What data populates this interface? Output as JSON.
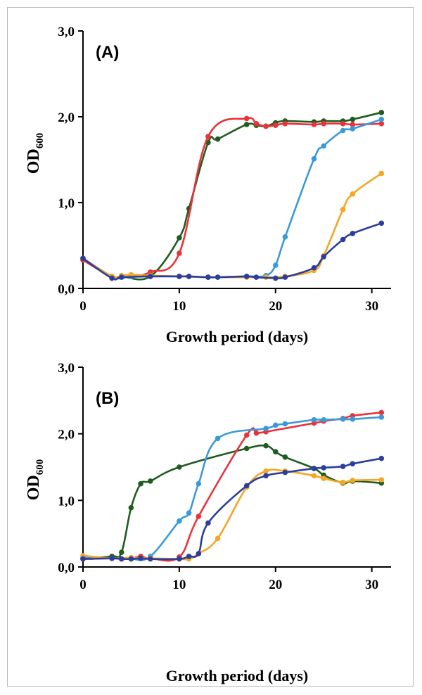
{
  "chart_data": [
    {
      "type": "line",
      "panel_label": "(A)",
      "xlabel": "Growth period (days)",
      "ylabel_main": "OD",
      "ylabel_sub": "600",
      "xlim": [
        0,
        32
      ],
      "ylim": [
        0,
        3
      ],
      "x_ticks": [
        "0",
        "10",
        "20",
        "30"
      ],
      "y_ticks": [
        "0,0",
        "1,0",
        "2,0",
        "3,0"
      ],
      "grid": false,
      "legend": "none",
      "series": [
        {
          "color": "#1f5c1f",
          "points": [
            [
              0,
              0.35
            ],
            [
              3,
              0.14
            ],
            [
              4,
              0.14
            ],
            [
              7,
              0.14
            ],
            [
              10,
              0.59
            ],
            [
              11,
              0.93
            ],
            [
              13,
              1.7
            ],
            [
              14,
              1.74
            ],
            [
              17,
              1.91
            ],
            [
              18,
              1.9
            ],
            [
              19,
              1.89
            ],
            [
              20,
              1.93
            ],
            [
              21,
              1.95
            ],
            [
              24,
              1.94
            ],
            [
              25,
              1.95
            ],
            [
              27,
              1.95
            ],
            [
              28,
              1.97
            ],
            [
              31,
              2.05
            ]
          ]
        },
        {
          "color": "#e8333a",
          "points": [
            [
              0,
              0.33
            ],
            [
              3,
              0.14
            ],
            [
              5,
              0.14
            ],
            [
              7,
              0.19
            ],
            [
              10,
              0.41
            ],
            [
              13,
              1.77
            ],
            [
              17,
              1.98
            ],
            [
              18,
              1.92
            ],
            [
              19,
              1.89
            ],
            [
              20,
              1.9
            ],
            [
              21,
              1.92
            ],
            [
              24,
              1.91
            ],
            [
              25,
              1.92
            ],
            [
              27,
              1.92
            ],
            [
              28,
              1.91
            ],
            [
              31,
              1.92
            ]
          ]
        },
        {
          "color": "#3a9ad9",
          "points": [
            [
              0,
              0.35
            ],
            [
              3,
              0.13
            ],
            [
              5,
              0.14
            ],
            [
              7,
              0.14
            ],
            [
              10,
              0.14
            ],
            [
              11,
              0.14
            ],
            [
              13,
              0.13
            ],
            [
              17,
              0.14
            ],
            [
              19,
              0.15
            ],
            [
              20,
              0.27
            ],
            [
              21,
              0.6
            ],
            [
              24,
              1.51
            ],
            [
              25,
              1.66
            ],
            [
              27,
              1.84
            ],
            [
              28,
              1.86
            ],
            [
              31,
              1.97
            ]
          ]
        },
        {
          "color": "#f5a623",
          "points": [
            [
              0,
              0.35
            ],
            [
              3,
              0.14
            ],
            [
              4,
              0.15
            ],
            [
              5,
              0.16
            ],
            [
              7,
              0.15
            ],
            [
              10,
              0.14
            ],
            [
              13,
              0.13
            ],
            [
              17,
              0.13
            ],
            [
              19,
              0.13
            ],
            [
              21,
              0.14
            ],
            [
              24,
              0.21
            ],
            [
              25,
              0.38
            ],
            [
              27,
              0.92
            ],
            [
              28,
              1.1
            ],
            [
              31,
              1.34
            ]
          ]
        },
        {
          "color": "#2c3e9c",
          "points": [
            [
              0,
              0.35
            ],
            [
              3,
              0.12
            ],
            [
              4,
              0.13
            ],
            [
              7,
              0.14
            ],
            [
              10,
              0.14
            ],
            [
              11,
              0.14
            ],
            [
              13,
              0.13
            ],
            [
              14,
              0.13
            ],
            [
              17,
              0.14
            ],
            [
              18,
              0.13
            ],
            [
              20,
              0.12
            ],
            [
              21,
              0.13
            ],
            [
              24,
              0.24
            ],
            [
              25,
              0.37
            ],
            [
              27,
              0.57
            ],
            [
              28,
              0.64
            ],
            [
              31,
              0.76
            ]
          ]
        }
      ]
    },
    {
      "type": "line",
      "panel_label": "(B)",
      "xlabel": "Growth period (days)",
      "ylabel_main": "OD",
      "ylabel_sub": "600",
      "xlim": [
        0,
        32
      ],
      "ylim": [
        0,
        3
      ],
      "x_ticks": [
        "0",
        "10",
        "20",
        "30"
      ],
      "y_ticks": [
        "0,0",
        "1,0",
        "2,0",
        "3,0"
      ],
      "grid": false,
      "legend": "none",
      "series": [
        {
          "color": "#1f5c1f",
          "points": [
            [
              0,
              0.13
            ],
            [
              3,
              0.16
            ],
            [
              4,
              0.22
            ],
            [
              5,
              0.89
            ],
            [
              6,
              1.25
            ],
            [
              7,
              1.29
            ],
            [
              10,
              1.5
            ],
            [
              17,
              1.78
            ],
            [
              19,
              1.82
            ],
            [
              20,
              1.73
            ],
            [
              21,
              1.65
            ],
            [
              24,
              1.48
            ],
            [
              25,
              1.38
            ],
            [
              27,
              1.26
            ],
            [
              28,
              1.29
            ],
            [
              31,
              1.26
            ]
          ]
        },
        {
          "color": "#e8333a",
          "points": [
            [
              0,
              0.12
            ],
            [
              3,
              0.13
            ],
            [
              4,
              0.12
            ],
            [
              5,
              0.13
            ],
            [
              6,
              0.16
            ],
            [
              7,
              0.13
            ],
            [
              10,
              0.15
            ],
            [
              12,
              0.76
            ],
            [
              17,
              1.98
            ],
            [
              18,
              2.01
            ],
            [
              19,
              2.03
            ],
            [
              24,
              2.16
            ],
            [
              25,
              2.19
            ],
            [
              27,
              2.23
            ],
            [
              28,
              2.27
            ],
            [
              31,
              2.32
            ]
          ]
        },
        {
          "color": "#3a9ad9",
          "points": [
            [
              0,
              0.14
            ],
            [
              3,
              0.13
            ],
            [
              5,
              0.12
            ],
            [
              7,
              0.16
            ],
            [
              10,
              0.69
            ],
            [
              11,
              0.81
            ],
            [
              12,
              1.25
            ],
            [
              14,
              1.93
            ],
            [
              19,
              2.08
            ],
            [
              20,
              2.13
            ],
            [
              21,
              2.15
            ],
            [
              24,
              2.21
            ],
            [
              25,
              2.21
            ],
            [
              27,
              2.22
            ],
            [
              28,
              2.22
            ],
            [
              31,
              2.25
            ]
          ]
        },
        {
          "color": "#f5a623",
          "points": [
            [
              0,
              0.17
            ],
            [
              3,
              0.13
            ],
            [
              5,
              0.14
            ],
            [
              7,
              0.13
            ],
            [
              10,
              0.12
            ],
            [
              11,
              0.12
            ],
            [
              12,
              0.2
            ],
            [
              14,
              0.43
            ],
            [
              17,
              1.2
            ],
            [
              19,
              1.44
            ],
            [
              21,
              1.44
            ],
            [
              24,
              1.37
            ],
            [
              25,
              1.33
            ],
            [
              27,
              1.27
            ],
            [
              28,
              1.3
            ],
            [
              31,
              1.31
            ]
          ]
        },
        {
          "color": "#2c3e9c",
          "points": [
            [
              0,
              0.12
            ],
            [
              3,
              0.13
            ],
            [
              4,
              0.12
            ],
            [
              5,
              0.12
            ],
            [
              6,
              0.13
            ],
            [
              7,
              0.12
            ],
            [
              10,
              0.12
            ],
            [
              11,
              0.16
            ],
            [
              12,
              0.2
            ],
            [
              13,
              0.66
            ],
            [
              17,
              1.22
            ],
            [
              19,
              1.37
            ],
            [
              21,
              1.42
            ],
            [
              24,
              1.48
            ],
            [
              25,
              1.49
            ],
            [
              27,
              1.51
            ],
            [
              28,
              1.55
            ],
            [
              31,
              1.63
            ]
          ]
        }
      ]
    }
  ]
}
